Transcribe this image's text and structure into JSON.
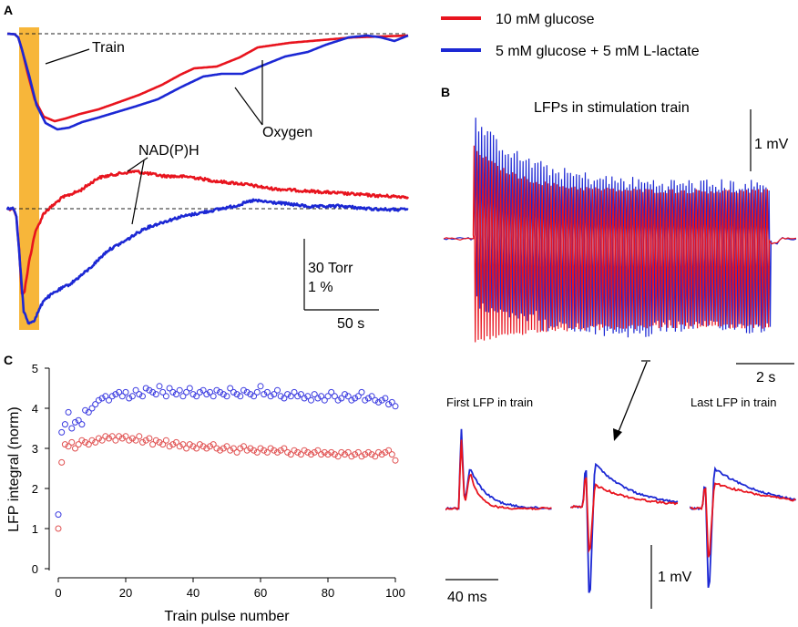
{
  "panels": {
    "a": "A",
    "b": "B",
    "c": "C"
  },
  "legend": {
    "items": [
      {
        "label": "10 mM glucose",
        "color": "#e8141e"
      },
      {
        "label": "5 mM glucose + 5 mM L-lactate",
        "color": "#1c28d4"
      }
    ]
  },
  "chart_data": [
    {
      "panel": "A",
      "type": "line",
      "annotations": [
        "Train",
        "Oxygen",
        "NAD(P)H"
      ],
      "scale_bar": {
        "vertical": [
          "30 Torr",
          "1 %"
        ],
        "horizontal": "50 s"
      },
      "series": [
        {
          "name": "10 mM glucose — Oxygen",
          "color": "#e8141e",
          "values": [
            [
              0,
              0
            ],
            [
              8,
              -0.5
            ],
            [
              12,
              -4
            ],
            [
              16,
              -17
            ],
            [
              22,
              -42
            ],
            [
              30,
              -72
            ],
            [
              40,
              -91
            ],
            [
              52,
              -96
            ],
            [
              64,
              -93
            ],
            [
              80,
              -88
            ],
            [
              100,
              -83
            ],
            [
              120,
              -76
            ],
            [
              145,
              -67
            ],
            [
              170,
              -56
            ],
            [
              190,
              -45
            ],
            [
              205,
              -38
            ],
            [
              230,
              -36
            ],
            [
              255,
              -26
            ],
            [
              275,
              -15
            ],
            [
              310,
              -10
            ],
            [
              345,
              -7
            ],
            [
              380,
              -4
            ],
            [
              410,
              -3
            ],
            [
              440,
              -2
            ]
          ]
        },
        {
          "name": "5 mM glucose + 5 mM L-lactate — Oxygen",
          "color": "#1c28d4",
          "values": [
            [
              0,
              0
            ],
            [
              8,
              -0.5
            ],
            [
              12,
              -4
            ],
            [
              16,
              -17
            ],
            [
              24,
              -46
            ],
            [
              32,
              -78
            ],
            [
              42,
              -98
            ],
            [
              55,
              -105
            ],
            [
              68,
              -103
            ],
            [
              82,
              -97
            ],
            [
              100,
              -92
            ],
            [
              120,
              -86
            ],
            [
              140,
              -80
            ],
            [
              165,
              -72
            ],
            [
              190,
              -59
            ],
            [
              215,
              -47
            ],
            [
              235,
              -44
            ],
            [
              258,
              -44
            ],
            [
              280,
              -35
            ],
            [
              305,
              -25
            ],
            [
              330,
              -20
            ],
            [
              350,
              -12
            ],
            [
              375,
              -4
            ],
            [
              395,
              -2
            ],
            [
              410,
              -4
            ],
            [
              425,
              -8
            ],
            [
              440,
              -2
            ]
          ]
        },
        {
          "name": "10 mM glucose — NAD(P)H",
          "color": "#e8141e",
          "values": [
            [
              0,
              0
            ],
            [
              7,
              0
            ],
            [
              10,
              -8
            ],
            [
              13,
              -45
            ],
            [
              16,
              -94
            ],
            [
              19,
              -90
            ],
            [
              24,
              -58
            ],
            [
              30,
              -28
            ],
            [
              40,
              -5
            ],
            [
              60,
              12
            ],
            [
              80,
              20
            ],
            [
              100,
              34
            ],
            [
              120,
              38
            ],
            [
              140,
              41
            ],
            [
              170,
              36
            ],
            [
              200,
              35
            ],
            [
              230,
              30
            ],
            [
              260,
              27
            ],
            [
              290,
              22
            ],
            [
              320,
              20
            ],
            [
              350,
              18
            ],
            [
              380,
              16
            ],
            [
              410,
              14
            ],
            [
              440,
              13
            ]
          ]
        },
        {
          "name": "5 mM glucose + 5 mM L-lactate — NAD(P)H",
          "color": "#1c28d4",
          "values": [
            [
              0,
              0
            ],
            [
              7,
              0
            ],
            [
              10,
              -10
            ],
            [
              14,
              -60
            ],
            [
              18,
              -112
            ],
            [
              23,
              -126
            ],
            [
              30,
              -122
            ],
            [
              40,
              -100
            ],
            [
              55,
              -90
            ],
            [
              70,
              -82
            ],
            [
              90,
              -66
            ],
            [
              110,
              -46
            ],
            [
              130,
              -35
            ],
            [
              150,
              -22
            ],
            [
              170,
              -15
            ],
            [
              190,
              -9
            ],
            [
              210,
              -5
            ],
            [
              230,
              -1
            ],
            [
              250,
              3
            ],
            [
              270,
              9
            ],
            [
              290,
              7
            ],
            [
              310,
              5
            ],
            [
              335,
              2
            ],
            [
              365,
              3
            ],
            [
              395,
              0
            ],
            [
              420,
              -1
            ],
            [
              440,
              -1
            ]
          ]
        }
      ]
    },
    {
      "panel": "B",
      "type": "line",
      "title": "LFPs in stimulation train",
      "scale_bar": {
        "vertical": "1 mV",
        "horizontal": "2 s"
      },
      "train_pulses": 100,
      "series": [
        {
          "name": "10 mM glucose",
          "color": "#e8141e"
        },
        {
          "name": "5 mM glucose + 5 mM L-lactate",
          "color": "#1c28d4"
        }
      ]
    },
    {
      "panel": "B-insets",
      "type": "line",
      "labels": [
        "First LFP in train",
        "Last LFP in train"
      ],
      "scale_bar": {
        "vertical": "1 mV",
        "horizontal": "40 ms"
      }
    },
    {
      "panel": "C",
      "type": "scatter",
      "xlabel": "Train pulse number",
      "ylabel": "LFP integral (norm)",
      "xlim": [
        0,
        100
      ],
      "ylim": [
        0,
        5
      ],
      "xticks": [
        0,
        20,
        40,
        60,
        80,
        100
      ],
      "yticks": [
        0,
        1,
        2,
        3,
        4,
        5
      ],
      "series": [
        {
          "name": "5 mM glucose + 5 mM L-lactate",
          "color": "#3a3ae0",
          "values": [
            1.35,
            3.4,
            3.6,
            3.9,
            3.5,
            3.65,
            3.7,
            3.6,
            3.95,
            3.9,
            4.0,
            4.1,
            4.2,
            4.25,
            4.3,
            4.2,
            4.3,
            4.35,
            4.4,
            4.3,
            4.4,
            4.25,
            4.3,
            4.45,
            4.35,
            4.3,
            4.5,
            4.45,
            4.4,
            4.35,
            4.55,
            4.4,
            4.3,
            4.5,
            4.4,
            4.35,
            4.45,
            4.3,
            4.4,
            4.5,
            4.35,
            4.3,
            4.4,
            4.45,
            4.35,
            4.4,
            4.3,
            4.45,
            4.4,
            4.35,
            4.3,
            4.5,
            4.4,
            4.35,
            4.3,
            4.45,
            4.4,
            4.35,
            4.3,
            4.4,
            4.55,
            4.35,
            4.4,
            4.3,
            4.35,
            4.45,
            4.3,
            4.25,
            4.35,
            4.3,
            4.4,
            4.3,
            4.35,
            4.25,
            4.3,
            4.2,
            4.35,
            4.25,
            4.3,
            4.2,
            4.3,
            4.4,
            4.3,
            4.2,
            4.25,
            4.35,
            4.3,
            4.2,
            4.25,
            4.3,
            4.4,
            4.2,
            4.25,
            4.3,
            4.2,
            4.15,
            4.2,
            4.25,
            4.1,
            4.15,
            4.05
          ]
        },
        {
          "name": "10 mM glucose",
          "color": "#e05050",
          "values": [
            1.0,
            2.65,
            3.1,
            3.05,
            3.15,
            3.0,
            3.1,
            3.2,
            3.15,
            3.1,
            3.2,
            3.15,
            3.25,
            3.2,
            3.3,
            3.25,
            3.3,
            3.2,
            3.3,
            3.25,
            3.3,
            3.2,
            3.25,
            3.2,
            3.3,
            3.15,
            3.2,
            3.25,
            3.1,
            3.2,
            3.15,
            3.1,
            3.2,
            3.05,
            3.1,
            3.15,
            3.05,
            3.1,
            3.0,
            3.1,
            3.05,
            3.0,
            3.1,
            3.05,
            3.0,
            3.05,
            3.1,
            3.0,
            2.95,
            3.0,
            3.05,
            2.95,
            3.0,
            2.9,
            3.0,
            3.05,
            2.95,
            3.0,
            2.95,
            2.9,
            3.0,
            2.95,
            2.9,
            3.0,
            2.95,
            2.9,
            2.95,
            3.0,
            2.9,
            2.85,
            2.95,
            2.9,
            2.85,
            2.95,
            2.9,
            2.85,
            2.9,
            2.95,
            2.85,
            2.9,
            2.85,
            2.9,
            2.85,
            2.8,
            2.9,
            2.85,
            2.9,
            2.8,
            2.85,
            2.9,
            2.8,
            2.85,
            2.9,
            2.85,
            2.8,
            2.9,
            2.85,
            2.9,
            2.95,
            2.85,
            2.7
          ]
        }
      ]
    }
  ]
}
